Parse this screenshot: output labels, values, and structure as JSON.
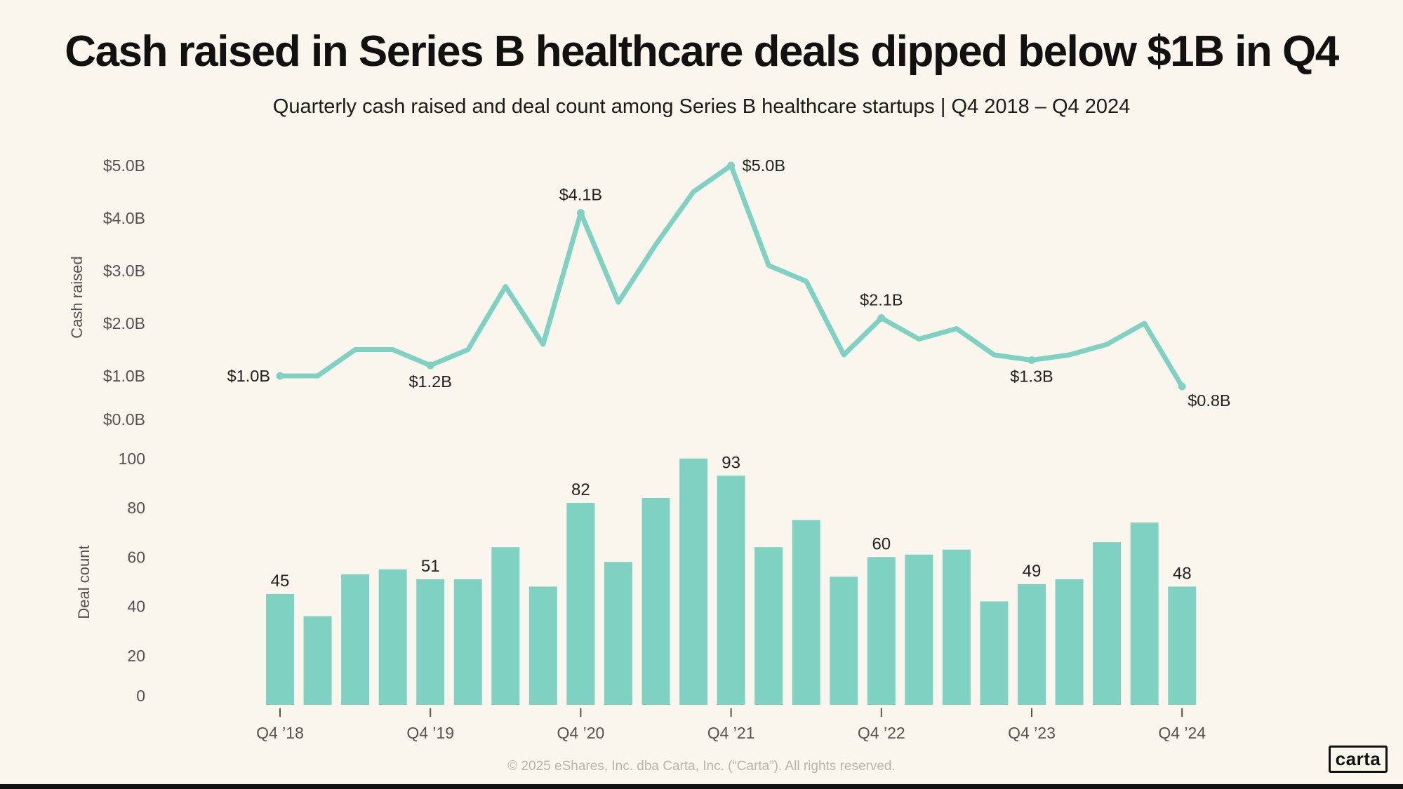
{
  "page": {
    "title": "Cash raised in Series B healthcare deals dipped below $1B in Q4",
    "subtitle": "Quarterly cash raised and deal count among Series B healthcare startups | Q4 2018 – Q4 2024",
    "footer": "© 2025 eShares, Inc. dba Carta, Inc. (“Carta”). All rights reserved.",
    "logo_text": "carta",
    "colors": {
      "accent_teal": "#7FD2C2",
      "background": "#FAF6EE",
      "title_text": "#12110F",
      "axis_text": "#55534D",
      "data_label_text": "#22211E",
      "footer_text": "#B9B4AB",
      "rule_black": "#111111"
    }
  },
  "chart_data": [
    {
      "type": "line",
      "name": "cash-raised",
      "ylabel": "Cash raised",
      "unit": "USD billions",
      "categories": [
        "Q4 '18",
        "Q1 '19",
        "Q2 '19",
        "Q3 '19",
        "Q4 '19",
        "Q1 '20",
        "Q2 '20",
        "Q3 '20",
        "Q4 '20",
        "Q1 '21",
        "Q2 '21",
        "Q3 '21",
        "Q4 '21",
        "Q1 '22",
        "Q2 '22",
        "Q3 '22",
        "Q4 '22",
        "Q1 '23",
        "Q2 '23",
        "Q3 '23",
        "Q4 '23",
        "Q1 '24",
        "Q2 '24",
        "Q3 '24",
        "Q4 '24"
      ],
      "values": [
        1.0,
        1.0,
        1.5,
        1.5,
        1.2,
        1.5,
        2.7,
        1.6,
        4.1,
        2.4,
        3.5,
        4.5,
        5.0,
        3.1,
        2.8,
        1.4,
        2.1,
        1.7,
        1.9,
        1.4,
        1.3,
        1.4,
        1.6,
        2.0,
        0.8
      ],
      "ylim": [
        0,
        5
      ],
      "ytick_labels": [
        "$0.0B",
        "$1.0B",
        "$2.0B",
        "$3.0B",
        "$4.0B",
        "$5.0B"
      ],
      "grid": false,
      "legend": false,
      "point_labels": [
        {
          "index": 0,
          "text": "$1.0B",
          "placement": "left"
        },
        {
          "index": 4,
          "text": "$1.2B",
          "placement": "below"
        },
        {
          "index": 8,
          "text": "$4.1B",
          "placement": "above"
        },
        {
          "index": 12,
          "text": "$5.0B",
          "placement": "right"
        },
        {
          "index": 16,
          "text": "$2.1B",
          "placement": "above"
        },
        {
          "index": 20,
          "text": "$1.3B",
          "placement": "below"
        },
        {
          "index": 24,
          "text": "$0.8B",
          "placement": "below-right"
        }
      ]
    },
    {
      "type": "bar",
      "name": "deal-count",
      "ylabel": "Deal count",
      "unit": "deals",
      "categories": [
        "Q4 '18",
        "Q1 '19",
        "Q2 '19",
        "Q3 '19",
        "Q4 '19",
        "Q1 '20",
        "Q2 '20",
        "Q3 '20",
        "Q4 '20",
        "Q1 '21",
        "Q2 '21",
        "Q3 '21",
        "Q4 '21",
        "Q1 '22",
        "Q2 '22",
        "Q3 '22",
        "Q4 '22",
        "Q1 '23",
        "Q2 '23",
        "Q3 '23",
        "Q4 '23",
        "Q1 '24",
        "Q2 '24",
        "Q3 '24",
        "Q4 '24"
      ],
      "values": [
        45,
        36,
        53,
        55,
        51,
        51,
        64,
        48,
        82,
        58,
        84,
        100,
        93,
        64,
        75,
        52,
        60,
        61,
        63,
        42,
        49,
        51,
        66,
        74,
        48
      ],
      "ylim": [
        0,
        100
      ],
      "ytick_labels": [
        "0",
        "20",
        "40",
        "60",
        "80",
        "100"
      ],
      "grid": false,
      "legend": false,
      "bar_labels": [
        {
          "index": 0,
          "text": "45"
        },
        {
          "index": 4,
          "text": "51"
        },
        {
          "index": 8,
          "text": "82"
        },
        {
          "index": 12,
          "text": "93"
        },
        {
          "index": 16,
          "text": "60"
        },
        {
          "index": 20,
          "text": "49"
        },
        {
          "index": 24,
          "text": "48"
        }
      ],
      "x_tick_labels": [
        {
          "index": 0,
          "text": "Q4 ’18"
        },
        {
          "index": 4,
          "text": "Q4 ’19"
        },
        {
          "index": 8,
          "text": "Q4 ’20"
        },
        {
          "index": 12,
          "text": "Q4 ’21"
        },
        {
          "index": 16,
          "text": "Q4 ’22"
        },
        {
          "index": 20,
          "text": "Q4 ’23"
        },
        {
          "index": 24,
          "text": "Q4 ’24"
        }
      ]
    }
  ]
}
